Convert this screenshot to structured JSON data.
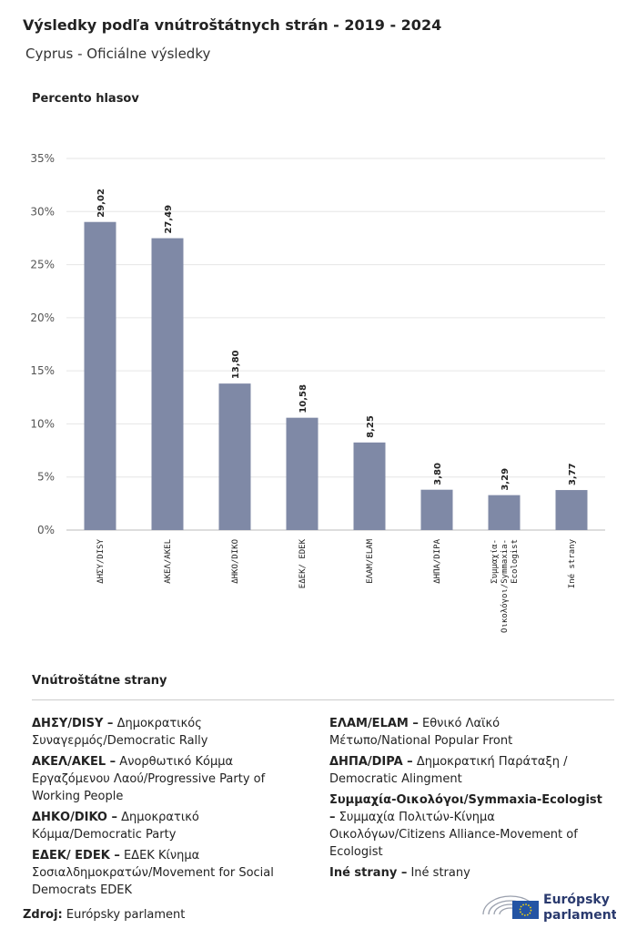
{
  "chart_data": {
    "type": "bar",
    "title": "Výsledky podľa vnútroštátnych strán - 2019 - 2024",
    "subtitle": "Cyprus - Oficiálne výsledky",
    "y_label": "Percento hlasov",
    "categories": [
      "ΔΗΣΥ/DISY",
      "ΑΚΕΛ/AKEL",
      "ΔΗΚΟ/DIKO",
      "ΕΔΕΚ/ EDEK",
      "ΕΛΑΜ/ELAM",
      "ΔΗΠΑ/DIPA",
      "Συμμαχία-Οικολόγοι/Symmaxia-Ecologist",
      "Iné strany"
    ],
    "values": [
      29.02,
      27.49,
      13.8,
      10.58,
      8.25,
      3.8,
      3.29,
      3.77
    ],
    "value_labels": [
      "29,02",
      "27,49",
      "13,80",
      "10,58",
      "8,25",
      "3,80",
      "3,29",
      "3,77"
    ],
    "color": "#7f89a6",
    "ylim": [
      0,
      35
    ],
    "yticks": [
      {
        "value": 0,
        "label": "0%"
      },
      {
        "value": 5,
        "label": "5%"
      },
      {
        "value": 10,
        "label": "10%"
      },
      {
        "value": 15,
        "label": "15%"
      },
      {
        "value": 20,
        "label": "20%"
      },
      {
        "value": 25,
        "label": "25%"
      },
      {
        "value": 30,
        "label": "30%"
      },
      {
        "value": 35,
        "label": "35%"
      }
    ],
    "grid": true
  },
  "legend": {
    "title": "Vnútroštátne strany",
    "columns": [
      [
        {
          "key": "ΔΗΣΥ/DISY –",
          "text": "Δημοκρατικός Συναγερμός/Democratic Rally"
        },
        {
          "key": "ΑΚΕΛ/AKEL –",
          "text": "Ανορθωτικό Κόμμα Εργαζόμενου Λαού/Progressive Party of Working People"
        },
        {
          "key": "ΔΗΚΟ/DIKO –",
          "text": "Δημοκρατικό Κόμμα/Democratic Party"
        },
        {
          "key": "ΕΔΕΚ/ EDEK –",
          "text": "ΕΔΕΚ Κίνημα Σοσιαλδημοκρατών/Movement for Social Democrats EDEK"
        }
      ],
      [
        {
          "key": "ΕΛΑΜ/ELAM –",
          "text": "Εθνικό Λαϊκό Μέτωπο/National Popular Front"
        },
        {
          "key": "ΔΗΠΑ/DIPA –",
          "text": "Δημοκρατική Παράταξη / Democratic Alingment"
        },
        {
          "key": "Συμμαχία-Οικολόγοι/Symmaxia-Ecologist –",
          "text": "Συμμαχία Πολιτών-Κίνημα Οικολόγων/Citizens Alliance-Movement of Ecologist"
        },
        {
          "key": "Iné strany –",
          "text": "Iné strany"
        }
      ]
    ]
  },
  "footer": {
    "source_label": "Zdroj:",
    "source": "Európsky parlament",
    "logo_line1": "Európsky",
    "logo_line2": "parlament"
  }
}
